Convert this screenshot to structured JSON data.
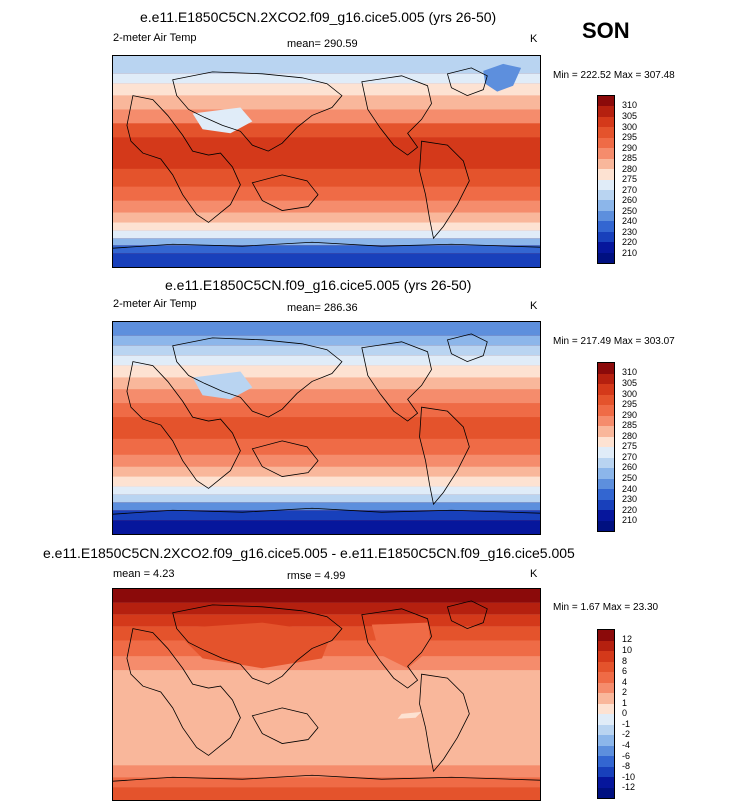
{
  "season": "SON",
  "panels": [
    {
      "title": "e.e11.E1850C5CN.2XCO2.f09_g16.cice5.005 (yrs 26-50)",
      "left_label": "2-meter Air Temp",
      "center_label": "mean= 290.59",
      "units": "K",
      "minmax": "Min = 222.52 Max = 307.48",
      "colorbar": {
        "levels": [
          "310",
          "305",
          "300",
          "295",
          "290",
          "285",
          "280",
          "275",
          "270",
          "260",
          "250",
          "240",
          "230",
          "220",
          "210"
        ],
        "colors": [
          "#8b0a0a",
          "#b5200f",
          "#d4391a",
          "#e4532c",
          "#ef6b46",
          "#f58c6c",
          "#f9b79b",
          "#fde2d2",
          "#e0ecf8",
          "#b9d4f1",
          "#8cb6ea",
          "#5d8fdd",
          "#3366d1",
          "#1840bb",
          "#06169c",
          "#001080"
        ]
      }
    },
    {
      "title": "e.e11.E1850C5CN.f09_g16.cice5.005 (yrs 26-50)",
      "left_label": "2-meter Air Temp",
      "center_label": "mean= 286.36",
      "units": "K",
      "minmax": "Min = 217.49 Max = 303.07",
      "colorbar": {
        "levels": [
          "310",
          "305",
          "300",
          "295",
          "290",
          "285",
          "280",
          "275",
          "270",
          "260",
          "250",
          "240",
          "230",
          "220",
          "210"
        ],
        "colors": [
          "#8b0a0a",
          "#b5200f",
          "#d4391a",
          "#e4532c",
          "#ef6b46",
          "#f58c6c",
          "#f9b79b",
          "#fde2d2",
          "#e0ecf8",
          "#b9d4f1",
          "#8cb6ea",
          "#5d8fdd",
          "#3366d1",
          "#1840bb",
          "#06169c",
          "#001080"
        ]
      }
    },
    {
      "title": "e.e11.E1850C5CN.2XCO2.f09_g16.cice5.005 - e.e11.E1850C5CN.f09_g16.cice5.005",
      "left_label": "mean =  4.23",
      "center_label": "rmse =  4.99",
      "units": "K",
      "minmax": "Min =  1.67 Max = 23.30",
      "colorbar": {
        "levels": [
          "12",
          "10",
          "8",
          "6",
          "4",
          "2",
          "1",
          "0",
          "-1",
          "-2",
          "-4",
          "-6",
          "-8",
          "-10",
          "-12"
        ],
        "colors": [
          "#8b0a0a",
          "#b5200f",
          "#d4391a",
          "#e4532c",
          "#ef6b46",
          "#f58c6c",
          "#f9b79b",
          "#fde2d2",
          "#e0ecf8",
          "#b9d4f1",
          "#8cb6ea",
          "#5d8fdd",
          "#3366d1",
          "#1840bb",
          "#06169c",
          "#001080"
        ]
      }
    }
  ]
}
